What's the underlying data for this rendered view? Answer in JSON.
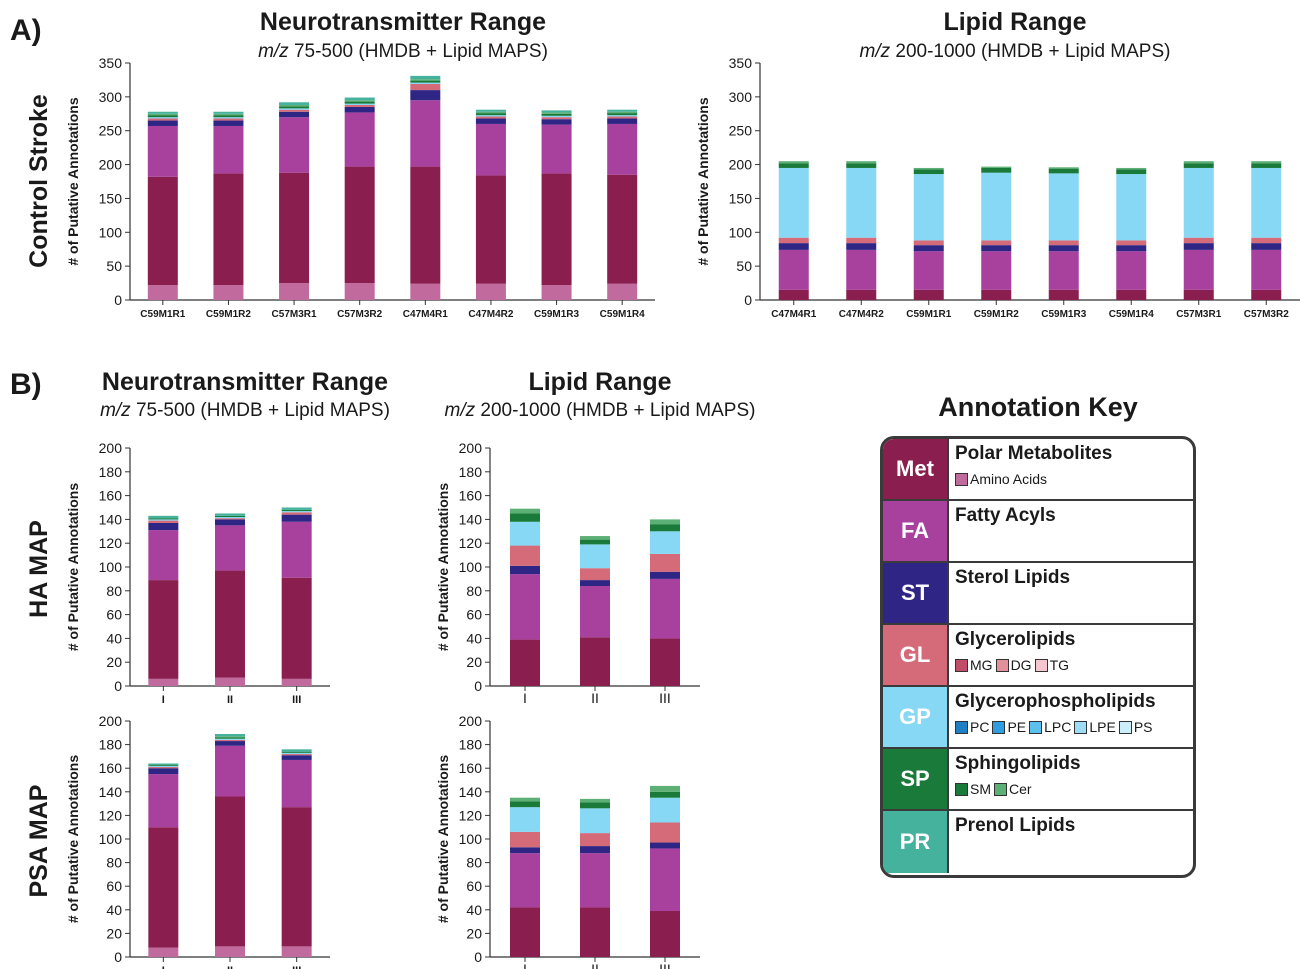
{
  "panels": {
    "a_letter": "A)",
    "b_letter": "B)",
    "row_a": "Control Stroke",
    "row_b1": "HA MAP",
    "row_b2": "PSA MAP"
  },
  "titles": {
    "neuro": "Neurotransmitter Range",
    "neuro_mz": "m/z",
    "neuro_sub": " 75-500 (HMDB + Lipid MAPS)",
    "lipid": "Lipid Range",
    "lipid_mz": "m/z",
    "lipid_sub": " 200-1000 (HMDB + Lipid MAPS)"
  },
  "colors": {
    "aa": "#c06a9e",
    "met": "#8a1f4f",
    "fa": "#a8409e",
    "st": "#2e2585",
    "gl": "#d56b79",
    "gp": "#86d8f4",
    "sp_sm": "#1a7a3a",
    "sp_cer": "#5cb075",
    "pr": "#45b29d"
  },
  "stack_order": [
    "aa",
    "met",
    "fa",
    "st",
    "gl",
    "gp",
    "sp_sm",
    "sp_cer",
    "pr"
  ],
  "chart_data": [
    {
      "id": "a_neuro",
      "type": "bar",
      "stacked": true,
      "ylabel": "# of Putative Annotations",
      "ylim": [
        0,
        350
      ],
      "yticks": [
        0,
        50,
        100,
        150,
        200,
        250,
        300,
        350
      ],
      "categories": [
        "C59M1R1",
        "C59M1R2",
        "C57M3R1",
        "C57M3R2",
        "C47M4R1",
        "C47M4R2",
        "C59M1R3",
        "C59M1R4"
      ],
      "series": [
        {
          "key": "aa",
          "values": [
            22,
            22,
            25,
            25,
            24,
            24,
            22,
            24
          ]
        },
        {
          "key": "met",
          "values": [
            160,
            165,
            163,
            172,
            173,
            160,
            165,
            161
          ]
        },
        {
          "key": "fa",
          "values": [
            75,
            70,
            82,
            80,
            98,
            76,
            72,
            75
          ]
        },
        {
          "key": "st",
          "values": [
            8,
            8,
            8,
            8,
            15,
            8,
            8,
            8
          ]
        },
        {
          "key": "gl",
          "values": [
            3,
            3,
            3,
            3,
            9,
            3,
            3,
            3
          ]
        },
        {
          "key": "gp",
          "values": [
            2,
            2,
            2,
            2,
            2,
            2,
            2,
            2
          ]
        },
        {
          "key": "sp_sm",
          "values": [
            3,
            3,
            3,
            3,
            3,
            3,
            3,
            3
          ]
        },
        {
          "key": "sp_cer",
          "values": [
            2,
            2,
            2,
            2,
            2,
            2,
            2,
            2
          ]
        },
        {
          "key": "pr",
          "values": [
            3,
            3,
            4,
            4,
            5,
            3,
            3,
            3
          ]
        }
      ]
    },
    {
      "id": "a_lipid",
      "type": "bar",
      "stacked": true,
      "ylabel": "# of Putative Annotations",
      "ylim": [
        0,
        350
      ],
      "yticks": [
        0,
        50,
        100,
        150,
        200,
        250,
        300,
        350
      ],
      "categories": [
        "C47M4R1",
        "C47M4R2",
        "C59M1R1",
        "C59M1R2",
        "C59M1R3",
        "C59M1R4",
        "C57M3R1",
        "C57M3R2"
      ],
      "series": [
        {
          "key": "aa",
          "values": [
            0,
            0,
            0,
            0,
            0,
            0,
            0,
            0
          ]
        },
        {
          "key": "met",
          "values": [
            15,
            15,
            15,
            15,
            15,
            15,
            15,
            15
          ]
        },
        {
          "key": "fa",
          "values": [
            59,
            59,
            57,
            57,
            57,
            57,
            59,
            59
          ]
        },
        {
          "key": "st",
          "values": [
            10,
            10,
            9,
            9,
            9,
            9,
            10,
            10
          ]
        },
        {
          "key": "gl",
          "values": [
            8,
            8,
            7,
            7,
            7,
            7,
            8,
            8
          ]
        },
        {
          "key": "gp",
          "values": [
            103,
            103,
            98,
            100,
            99,
            98,
            103,
            103
          ]
        },
        {
          "key": "sp_sm",
          "values": [
            7,
            7,
            7,
            7,
            7,
            7,
            7,
            7
          ]
        },
        {
          "key": "sp_cer",
          "values": [
            3,
            3,
            2,
            2,
            2,
            2,
            3,
            3
          ]
        },
        {
          "key": "pr",
          "values": [
            0,
            0,
            0,
            0,
            0,
            0,
            0,
            0
          ]
        }
      ]
    },
    {
      "id": "b_ha_neuro",
      "type": "bar",
      "stacked": true,
      "ylabel": "# of Putative Annotations",
      "ylim": [
        0,
        200
      ],
      "yticks": [
        0,
        20,
        40,
        60,
        80,
        100,
        120,
        140,
        160,
        180,
        200
      ],
      "categories": [
        "I",
        "II",
        "III"
      ],
      "series": [
        {
          "key": "aa",
          "values": [
            6,
            7,
            6
          ]
        },
        {
          "key": "met",
          "values": [
            83,
            90,
            85
          ]
        },
        {
          "key": "fa",
          "values": [
            42,
            38,
            47
          ]
        },
        {
          "key": "st",
          "values": [
            6,
            5,
            6
          ]
        },
        {
          "key": "gl",
          "values": [
            2,
            1,
            2
          ]
        },
        {
          "key": "gp",
          "values": [
            1,
            1,
            1
          ]
        },
        {
          "key": "sp_sm",
          "values": [
            1,
            1,
            1
          ]
        },
        {
          "key": "sp_cer",
          "values": [
            0,
            0,
            0
          ]
        },
        {
          "key": "pr",
          "values": [
            2,
            2,
            2
          ]
        }
      ]
    },
    {
      "id": "b_ha_lipid",
      "type": "bar",
      "stacked": true,
      "ylabel": "# of Putative Annotations",
      "ylim": [
        0,
        200
      ],
      "yticks": [
        0,
        20,
        40,
        60,
        80,
        100,
        120,
        140,
        160,
        180,
        200
      ],
      "categories": [
        "I",
        "II",
        "III"
      ],
      "series": [
        {
          "key": "aa",
          "values": [
            0,
            0,
            0
          ]
        },
        {
          "key": "met",
          "values": [
            39,
            41,
            40
          ]
        },
        {
          "key": "fa",
          "values": [
            55,
            43,
            50
          ]
        },
        {
          "key": "st",
          "values": [
            7,
            5,
            6
          ]
        },
        {
          "key": "gl",
          "values": [
            17,
            10,
            15
          ]
        },
        {
          "key": "gp",
          "values": [
            20,
            20,
            19
          ]
        },
        {
          "key": "sp_sm",
          "values": [
            7,
            4,
            6
          ]
        },
        {
          "key": "sp_cer",
          "values": [
            4,
            3,
            4
          ]
        },
        {
          "key": "pr",
          "values": [
            0,
            0,
            0
          ]
        }
      ]
    },
    {
      "id": "b_psa_neuro",
      "type": "bar",
      "stacked": true,
      "ylabel": "# of Putative Annotations",
      "ylim": [
        0,
        200
      ],
      "yticks": [
        0,
        20,
        40,
        60,
        80,
        100,
        120,
        140,
        160,
        180,
        200
      ],
      "categories": [
        "I",
        "II",
        "III"
      ],
      "series": [
        {
          "key": "aa",
          "values": [
            8,
            9,
            9
          ]
        },
        {
          "key": "met",
          "values": [
            102,
            127,
            118
          ]
        },
        {
          "key": "fa",
          "values": [
            45,
            43,
            40
          ]
        },
        {
          "key": "st",
          "values": [
            5,
            4,
            4
          ]
        },
        {
          "key": "gl",
          "values": [
            1,
            1,
            1
          ]
        },
        {
          "key": "gp",
          "values": [
            1,
            1,
            1
          ]
        },
        {
          "key": "sp_sm",
          "values": [
            1,
            1,
            1
          ]
        },
        {
          "key": "sp_cer",
          "values": [
            0,
            1,
            0
          ]
        },
        {
          "key": "pr",
          "values": [
            1,
            2,
            2
          ]
        }
      ]
    },
    {
      "id": "b_psa_lipid",
      "type": "bar",
      "stacked": true,
      "ylabel": "# of Putative Annotations",
      "ylim": [
        0,
        200
      ],
      "yticks": [
        0,
        20,
        40,
        60,
        80,
        100,
        120,
        140,
        160,
        180,
        200
      ],
      "categories": [
        "I",
        "II",
        "III"
      ],
      "series": [
        {
          "key": "aa",
          "values": [
            0,
            0,
            0
          ]
        },
        {
          "key": "met",
          "values": [
            42,
            42,
            39
          ]
        },
        {
          "key": "fa",
          "values": [
            46,
            46,
            53
          ]
        },
        {
          "key": "st",
          "values": [
            5,
            6,
            5
          ]
        },
        {
          "key": "gl",
          "values": [
            13,
            11,
            17
          ]
        },
        {
          "key": "gp",
          "values": [
            21,
            21,
            21
          ]
        },
        {
          "key": "sp_sm",
          "values": [
            5,
            5,
            5
          ]
        },
        {
          "key": "sp_cer",
          "values": [
            3,
            3,
            5
          ]
        },
        {
          "key": "pr",
          "values": [
            0,
            0,
            0
          ]
        }
      ]
    }
  ],
  "key": {
    "title": "Annotation Key",
    "rows": [
      {
        "code": "Met",
        "name": "Polar Metabolites",
        "color": "#8a1f4f",
        "subs": [
          {
            "label": "Amino Acids",
            "color": "#c06a9e"
          }
        ]
      },
      {
        "code": "FA",
        "name": "Fatty Acyls",
        "color": "#a8409e",
        "subs": []
      },
      {
        "code": "ST",
        "name": "Sterol Lipids",
        "color": "#2e2585",
        "subs": []
      },
      {
        "code": "GL",
        "name": "Glycerolipids",
        "color": "#d56b79",
        "subs": [
          {
            "label": "MG",
            "color": "#c24d68"
          },
          {
            "label": "DG",
            "color": "#e3909b"
          },
          {
            "label": "TG",
            "color": "#f5c6cf"
          }
        ]
      },
      {
        "code": "GP",
        "name": "Glycerophospholipids",
        "color": "#86d8f4",
        "subs": [
          {
            "label": "PC",
            "color": "#1f7fc4"
          },
          {
            "label": "PE",
            "color": "#2f9ee0"
          },
          {
            "label": "LPC",
            "color": "#5cc0ef"
          },
          {
            "label": "LPE",
            "color": "#9ddcf7"
          },
          {
            "label": "PS",
            "color": "#cdeefb"
          }
        ]
      },
      {
        "code": "SP",
        "name": "Sphingolipids",
        "color": "#1a7a3a",
        "subs": [
          {
            "label": "SM",
            "color": "#1a7a3a"
          },
          {
            "label": "Cer",
            "color": "#5cb075"
          }
        ]
      },
      {
        "code": "PR",
        "name": "Prenol Lipids",
        "color": "#45b29d",
        "subs": []
      }
    ]
  }
}
